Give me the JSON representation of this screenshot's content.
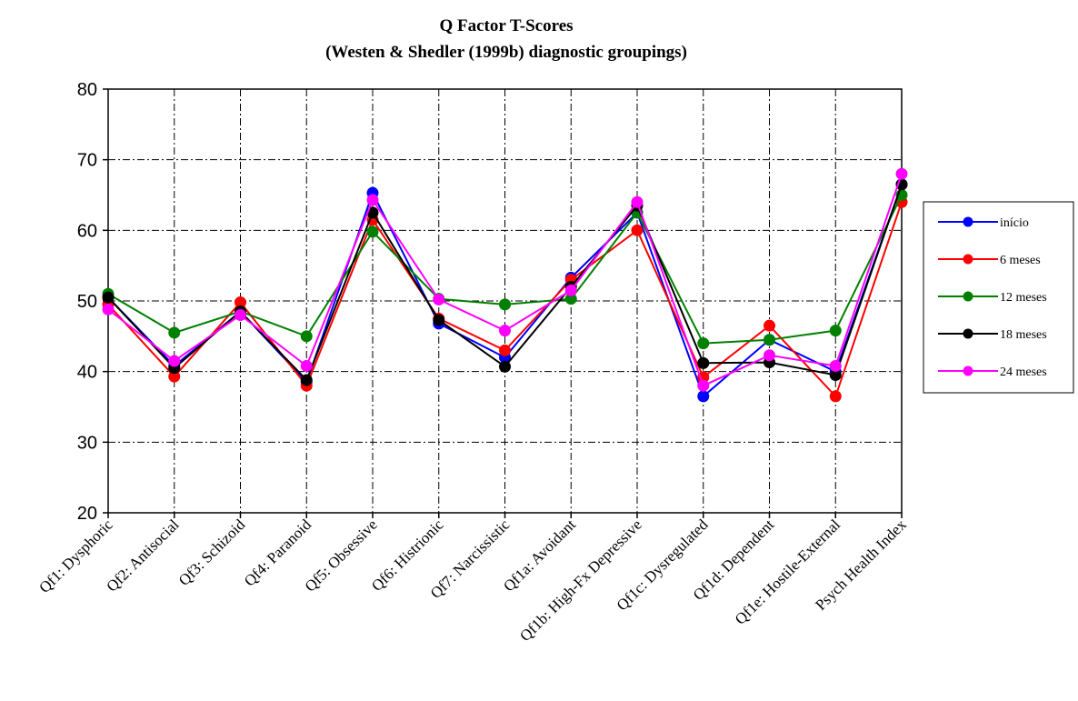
{
  "chart_data": {
    "type": "line",
    "title": "Q Factor T-Scores",
    "subtitle": "(Westen & Shedler (1999b) diagnostic groupings)",
    "xlabel": "",
    "ylabel": "",
    "ylim": [
      20,
      80
    ],
    "yticks": [
      20,
      30,
      40,
      50,
      60,
      70,
      80
    ],
    "grid": true,
    "legend_position": "right",
    "categories": [
      "Qf1: Dysphoric",
      "Qf2: Antisocial",
      "Qf3: Schizoid",
      "Qf4: Paranoid",
      "Qf5: Obsessive",
      "Qf6: Histrionic",
      "Qf7: Narcissistic",
      "Qf1a: Avoidant",
      "Qf1b: High-Fx Depressive",
      "Qf1c: Dysregulated",
      "Qf1d: Dependent",
      "Qf1e: Hostile-External",
      "Psych Health Index"
    ],
    "series": [
      {
        "name": "início",
        "color": "#0000ff",
        "values": [
          50.5,
          40.8,
          48.5,
          38.5,
          65.3,
          46.8,
          42.0,
          53.3,
          62.5,
          36.5,
          44.5,
          40.0,
          66.5
        ]
      },
      {
        "name": "6 meses",
        "color": "#ff0000",
        "values": [
          49.5,
          39.3,
          49.8,
          38.0,
          61.5,
          47.5,
          43.0,
          53.0,
          60.0,
          39.2,
          46.5,
          36.5,
          64.0
        ]
      },
      {
        "name": "12 meses",
        "color": "#008000",
        "values": [
          51.0,
          45.5,
          48.5,
          45.0,
          59.8,
          50.3,
          49.5,
          50.3,
          62.5,
          44.0,
          44.5,
          45.8,
          65.0
        ]
      },
      {
        "name": "18 meses",
        "color": "#000000",
        "values": [
          50.5,
          40.5,
          48.5,
          38.8,
          62.5,
          47.3,
          40.7,
          52.0,
          63.5,
          41.2,
          41.3,
          39.5,
          66.5
        ]
      },
      {
        "name": "24 meses",
        "color": "#ff00ff",
        "values": [
          48.8,
          41.5,
          48.0,
          40.8,
          64.3,
          50.2,
          45.8,
          51.5,
          64.0,
          38.0,
          42.3,
          40.8,
          68.0
        ]
      }
    ]
  }
}
